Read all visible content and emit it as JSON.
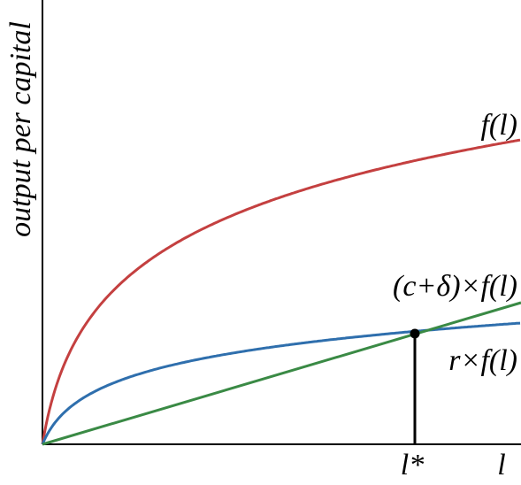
{
  "axes": {
    "y_label": "output per capital",
    "x_label": "l",
    "x_marker": "l*"
  },
  "curves": [
    {
      "label": "f(l)"
    },
    {
      "label": "(c+δ)×f(l)"
    },
    {
      "label": "r×f(l)"
    }
  ]
}
